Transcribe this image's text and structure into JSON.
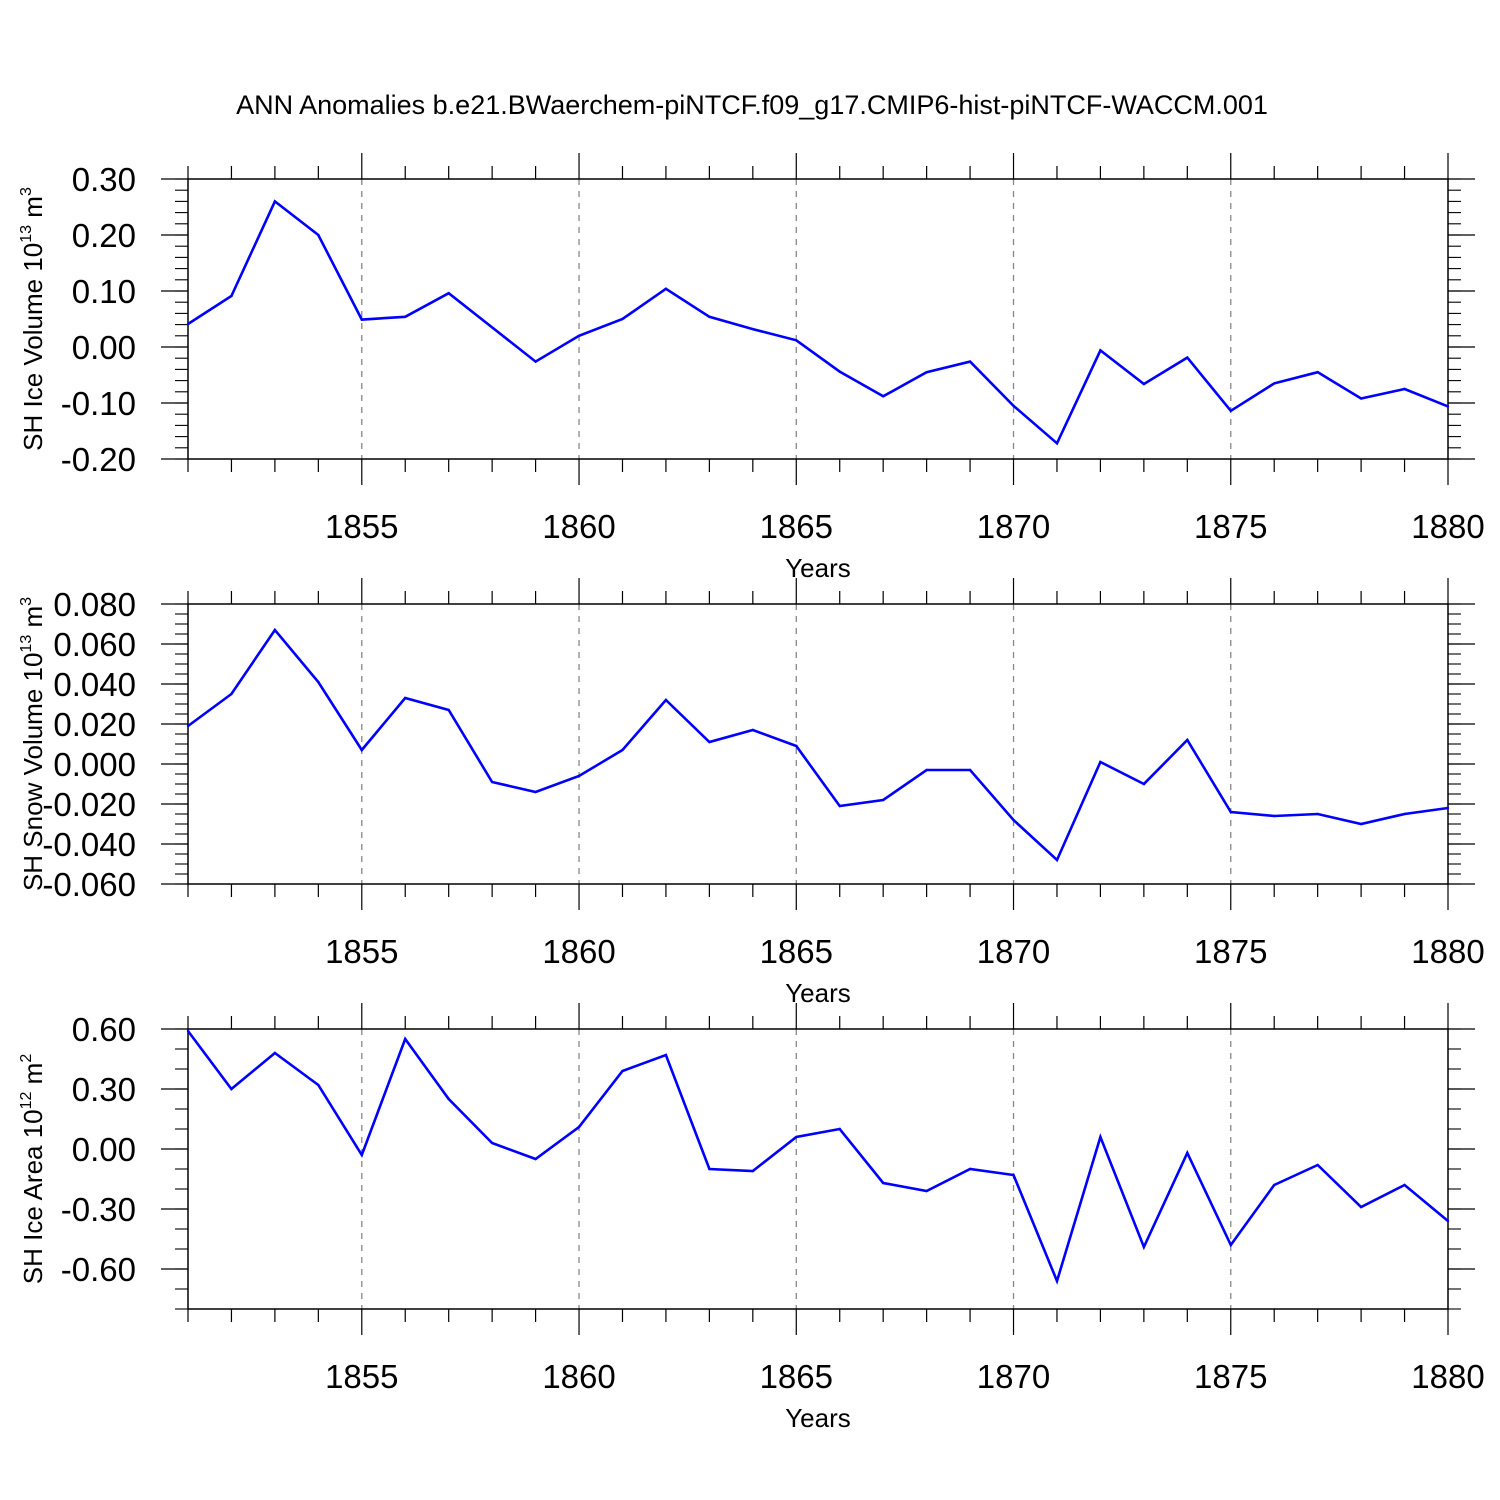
{
  "title": "ANN Anomalies b.e21.BWaerchem-piNTCF.f09_g17.CMIP6-hist-piNTCF-WACCM.001",
  "chart_data": [
    {
      "type": "line",
      "ylabel": {
        "prefix": "SH Ice Volume 10",
        "exp": "13",
        "unit": " m",
        "unit_exp": "3"
      },
      "xlabel": "Years",
      "xlim": [
        1851,
        1880
      ],
      "ylim": [
        -0.2,
        0.3
      ],
      "xticks": [
        1855,
        1860,
        1865,
        1870,
        1875,
        1880
      ],
      "xtick_labels": [
        "1855",
        "1860",
        "1865",
        "1870",
        "1875",
        "1880"
      ],
      "yticks": [
        -0.2,
        -0.1,
        0.0,
        0.1,
        0.2,
        0.3
      ],
      "ytick_labels": [
        "-0.20",
        "-0.10",
        "0.00",
        "0.10",
        "0.20",
        "0.30"
      ],
      "yminor_step": 0.02,
      "color": "#0000ff",
      "series": [
        {
          "name": "SH Ice Volume",
          "x": [
            1851,
            1852,
            1853,
            1854,
            1855,
            1856,
            1857,
            1858,
            1859,
            1860,
            1861,
            1862,
            1863,
            1864,
            1865,
            1866,
            1867,
            1868,
            1869,
            1870,
            1871,
            1872,
            1873,
            1874,
            1875,
            1876,
            1877,
            1878,
            1879,
            1880
          ],
          "values": [
            0.041,
            0.091,
            0.26,
            0.2,
            0.049,
            0.054,
            0.096,
            0.035,
            -0.026,
            0.02,
            0.05,
            0.104,
            0.054,
            0.032,
            0.012,
            -0.044,
            -0.088,
            -0.045,
            -0.026,
            -0.105,
            -0.172,
            -0.006,
            -0.066,
            -0.019,
            -0.114,
            -0.065,
            -0.045,
            -0.092,
            -0.075,
            -0.106
          ]
        }
      ]
    },
    {
      "type": "line",
      "ylabel": {
        "prefix": "SH Snow Volume 10",
        "exp": "13",
        "unit": " m",
        "unit_exp": "3"
      },
      "xlabel": "Years",
      "xlim": [
        1851,
        1880
      ],
      "ylim": [
        -0.06,
        0.08
      ],
      "xticks": [
        1855,
        1860,
        1865,
        1870,
        1875,
        1880
      ],
      "xtick_labels": [
        "1855",
        "1860",
        "1865",
        "1870",
        "1875",
        "1880"
      ],
      "yticks": [
        -0.06,
        -0.04,
        -0.02,
        0.0,
        0.02,
        0.04,
        0.06,
        0.08
      ],
      "ytick_labels": [
        "-0.060",
        "-0.040",
        "-0.020",
        "0.000",
        "0.020",
        "0.040",
        "0.060",
        "0.080"
      ],
      "yminor_step": 0.005,
      "color": "#0000ff",
      "series": [
        {
          "name": "SH Snow Volume",
          "x": [
            1851,
            1852,
            1853,
            1854,
            1855,
            1856,
            1857,
            1858,
            1859,
            1860,
            1861,
            1862,
            1863,
            1864,
            1865,
            1866,
            1867,
            1868,
            1869,
            1870,
            1871,
            1872,
            1873,
            1874,
            1875,
            1876,
            1877,
            1878,
            1879,
            1880
          ],
          "values": [
            0.019,
            0.035,
            0.067,
            0.041,
            0.007,
            0.033,
            0.027,
            -0.009,
            -0.014,
            -0.006,
            0.007,
            0.032,
            0.011,
            0.017,
            0.009,
            -0.021,
            -0.018,
            -0.003,
            -0.003,
            -0.028,
            -0.048,
            0.001,
            -0.01,
            0.012,
            -0.024,
            -0.026,
            -0.025,
            -0.03,
            -0.025,
            -0.022
          ]
        }
      ]
    },
    {
      "type": "line",
      "ylabel": {
        "prefix": "SH Ice Area 10",
        "exp": "12",
        "unit": " m",
        "unit_exp": "2"
      },
      "xlabel": "Years",
      "xlim": [
        1851,
        1880
      ],
      "ylim": [
        -0.8,
        0.6
      ],
      "xticks": [
        1855,
        1860,
        1865,
        1870,
        1875,
        1880
      ],
      "xtick_labels": [
        "1855",
        "1860",
        "1865",
        "1870",
        "1875",
        "1880"
      ],
      "yticks": [
        -0.6,
        -0.3,
        0.0,
        0.3,
        0.6
      ],
      "ytick_labels": [
        "-0.60",
        "-0.30",
        "0.00",
        "0.30",
        "0.60"
      ],
      "yminor_step": 0.1,
      "color": "#0000ff",
      "series": [
        {
          "name": "SH Ice Area",
          "x": [
            1851,
            1852,
            1853,
            1854,
            1855,
            1856,
            1857,
            1858,
            1859,
            1860,
            1861,
            1862,
            1863,
            1864,
            1865,
            1866,
            1867,
            1868,
            1869,
            1870,
            1871,
            1872,
            1873,
            1874,
            1875,
            1876,
            1877,
            1878,
            1879,
            1880
          ],
          "values": [
            0.59,
            0.3,
            0.48,
            0.32,
            -0.03,
            0.55,
            0.25,
            0.03,
            -0.05,
            0.11,
            0.39,
            0.47,
            -0.1,
            -0.11,
            0.06,
            0.1,
            -0.17,
            -0.21,
            -0.1,
            -0.13,
            -0.66,
            0.06,
            -0.49,
            -0.02,
            -0.48,
            -0.18,
            -0.08,
            -0.29,
            -0.18,
            -0.36
          ]
        }
      ]
    }
  ]
}
